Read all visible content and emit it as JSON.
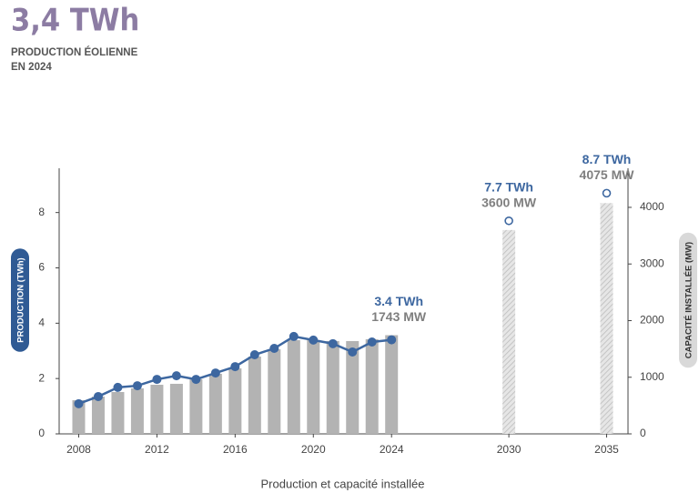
{
  "header": {
    "value": "3,4 TWh",
    "caption": [
      "PRODUCTION ÉOLIENNE",
      "EN 2024"
    ]
  },
  "chart_data": {
    "type": "bar-line",
    "xlabel": "Production et capacité installée",
    "ylabel": "PRODUCTION (TWh)",
    "y2label": "CAPACITÉ INSTALLÉE (MW)",
    "x": [
      2008,
      2009,
      2010,
      2011,
      2012,
      2013,
      2014,
      2015,
      2016,
      2017,
      2018,
      2019,
      2020,
      2021,
      2022,
      2023,
      2024,
      2030,
      2035
    ],
    "xlim": [
      2007,
      2036
    ],
    "xticks": [
      2008,
      2012,
      2016,
      2020,
      2024,
      2030,
      2035
    ],
    "ylim": [
      0,
      9.6
    ],
    "yticks": [
      0,
      2,
      4,
      6,
      8
    ],
    "y2lim": [
      0,
      4690
    ],
    "y2ticks": [
      0,
      1000,
      2000,
      3000,
      4000
    ],
    "grid": false,
    "series": [
      {
        "name": "Capacité installée",
        "type": "bar",
        "axis": "y2",
        "color": "#b3b3b3",
        "values": [
          594,
          659,
          739,
          803,
          867,
          884,
          964,
          1060,
          1157,
          1365,
          1494,
          1655,
          1655,
          1639,
          1639,
          1671,
          1743,
          3600,
          4075
        ],
        "value_labels": [
          null,
          null,
          null,
          null,
          null,
          null,
          null,
          null,
          null,
          null,
          null,
          null,
          null,
          null,
          null,
          null,
          "1743 MW",
          "3600 MW",
          "4075 MW"
        ]
      },
      {
        "name": "Production",
        "type": "line",
        "axis": "y",
        "color": "#3d67a0",
        "values": [
          1.09,
          1.35,
          1.68,
          1.74,
          1.97,
          2.1,
          1.97,
          2.2,
          2.43,
          2.86,
          3.09,
          3.52,
          3.39,
          3.26,
          2.96,
          3.32,
          3.4,
          7.7,
          8.7
        ],
        "value_labels": [
          null,
          null,
          null,
          null,
          null,
          null,
          null,
          null,
          null,
          null,
          null,
          null,
          null,
          null,
          null,
          null,
          "3.4 TWh",
          "7.7 TWh",
          "8.7 TWh"
        ]
      }
    ]
  }
}
